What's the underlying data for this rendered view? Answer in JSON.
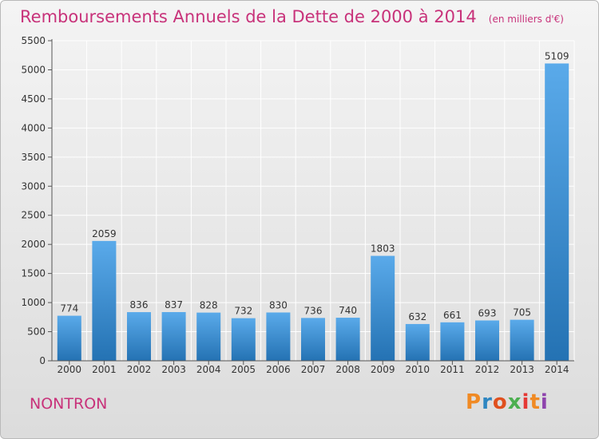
{
  "header": {
    "title": "Remboursements Annuels de la Dette de 2000 à 2014",
    "subtitle": "(en milliers d'€)"
  },
  "footer": {
    "commune": "NONTRON",
    "logo_text": "Proxiti",
    "logo_colors": [
      "#f08a24",
      "#2e86c1",
      "#e0501e",
      "#4caf50",
      "#e53935",
      "#f08a24",
      "#8e44ad"
    ]
  },
  "colors": {
    "title": "#c8327a",
    "bar_light": "#5aaaea",
    "bar_dark": "#2472b3",
    "grid": "#ffffff",
    "axis": "#555555"
  },
  "chart_data": {
    "type": "bar",
    "title": "Remboursements Annuels de la Dette de 2000 à 2014",
    "subtitle": "(en milliers d'€)",
    "categories": [
      "2000",
      "2001",
      "2002",
      "2003",
      "2004",
      "2005",
      "2006",
      "2007",
      "2008",
      "2009",
      "2010",
      "2011",
      "2012",
      "2013",
      "2014"
    ],
    "values": [
      774,
      2059,
      836,
      837,
      828,
      732,
      830,
      736,
      740,
      1803,
      632,
      661,
      693,
      705,
      5109
    ],
    "ylim": [
      0,
      5500
    ],
    "yticks": [
      0,
      500,
      1000,
      1500,
      2000,
      2500,
      3000,
      3500,
      4000,
      4500,
      5000,
      5500
    ],
    "grid": true,
    "data_labels": true
  }
}
